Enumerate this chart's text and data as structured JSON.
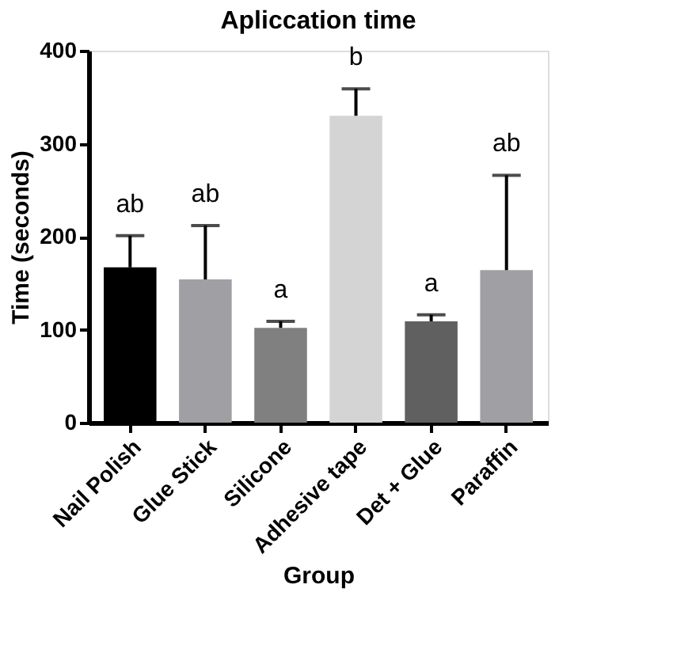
{
  "chart_data": {
    "type": "bar",
    "title": "Apliccation time",
    "xlabel": "Group",
    "ylabel": "Time (seconds)",
    "categories": [
      "Nail Polish",
      "Glue Stick",
      "Silicone",
      "Adhesive tape",
      "Det + Glue",
      "Paraffin"
    ],
    "values": [
      167,
      154,
      102,
      330,
      109,
      164
    ],
    "errors": [
      [
        167,
        201
      ],
      [
        154,
        212
      ],
      [
        102,
        109
      ],
      [
        330,
        359
      ],
      [
        109,
        116
      ],
      [
        164,
        266
      ]
    ],
    "colors": [
      "#000000",
      "#a0a0a4",
      "#808080",
      "#d4d4d4",
      "#606060",
      "#a0a0a4"
    ],
    "ylim": [
      0,
      400
    ],
    "yticks": [
      0,
      100,
      200,
      300,
      400
    ],
    "grid": false,
    "annotations": [
      "ab",
      "ab",
      "a",
      "b",
      "a",
      "ab"
    ]
  }
}
